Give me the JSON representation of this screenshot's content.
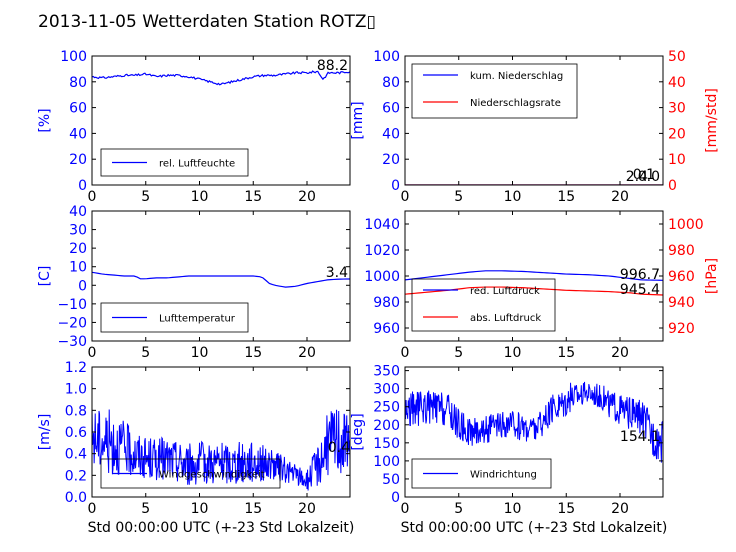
{
  "title": "2013-11-05 Wetterdaten Station ROTZ▯",
  "colors": {
    "blue": "#0000ff",
    "red": "#ff0000",
    "black": "#000000"
  },
  "chart_data": [
    {
      "type": "line",
      "id": "humidity",
      "ylabel": "[%]",
      "xlim": [
        0,
        24
      ],
      "ylim": [
        0,
        100
      ],
      "xticks": [
        "0",
        "5",
        "10",
        "15",
        "20"
      ],
      "yticks": [
        "0",
        "20",
        "40",
        "60",
        "80",
        "100"
      ],
      "legend": "lower-left",
      "annotations": [
        "88.2"
      ],
      "series": [
        {
          "name": "rel. Luftfeuchte",
          "color": "#0000ff",
          "x": [
            0,
            1,
            2,
            3,
            4,
            5,
            6,
            7,
            8,
            9,
            10,
            11,
            12,
            13,
            14,
            15,
            16,
            17,
            18,
            19,
            20,
            21,
            21.5,
            22,
            23,
            24
          ],
          "y": [
            84,
            83,
            84,
            85,
            85,
            86,
            84,
            85,
            85,
            84,
            82,
            80,
            78,
            80,
            82,
            84,
            85,
            85,
            86,
            87,
            87,
            88,
            82,
            87,
            87,
            88
          ]
        }
      ]
    },
    {
      "type": "line",
      "id": "precip",
      "ylabel": "[mm]",
      "ylabel2": "[mm/std]",
      "xlim": [
        0,
        24
      ],
      "ylim": [
        0,
        100
      ],
      "ylim2": [
        0,
        50
      ],
      "xticks": [
        "0",
        "5",
        "10",
        "15",
        "20"
      ],
      "yticks": [
        "0",
        "20",
        "40",
        "60",
        "80",
        "100"
      ],
      "yticks2": [
        "0",
        "10",
        "20",
        "30",
        "40",
        "50"
      ],
      "legend": "upper-left",
      "annotations": [
        "2.4",
        "0.0",
        "0.1"
      ],
      "series": [
        {
          "name": "kum. Niederschlag",
          "color": "#0000ff",
          "axis": "left",
          "x": [
            0,
            5,
            10,
            15,
            20,
            24
          ],
          "y": [
            0,
            0,
            0,
            0,
            0,
            0
          ]
        },
        {
          "name": "Niederschlagsrate",
          "color": "#ff0000",
          "axis": "right",
          "x": [
            0,
            5,
            10,
            15,
            20,
            24
          ],
          "y": [
            0,
            0,
            0,
            0,
            0,
            0
          ]
        }
      ]
    },
    {
      "type": "line",
      "id": "temperature",
      "ylabel": "[C]",
      "xlim": [
        0,
        24
      ],
      "ylim": [
        -30,
        40
      ],
      "xticks": [
        "0",
        "5",
        "10",
        "15",
        "20"
      ],
      "yticks": [
        "−30",
        "−20",
        "−10",
        "0",
        "10",
        "20",
        "30",
        "40"
      ],
      "legend": "lower-left",
      "annotations": [
        "3.4"
      ],
      "series": [
        {
          "name": "Lufttemperatur",
          "color": "#0000ff",
          "x": [
            0,
            1,
            2,
            3,
            4,
            4.5,
            5,
            6,
            7,
            8,
            9,
            10,
            11,
            12,
            13,
            14,
            15,
            15.8,
            16.5,
            17,
            18,
            19,
            20,
            21,
            22,
            23,
            24
          ],
          "y": [
            7,
            6,
            5.5,
            5,
            5,
            3.5,
            3.5,
            4,
            4,
            4.5,
            5,
            5,
            5,
            5,
            5,
            5,
            5,
            4.5,
            1,
            0,
            -1,
            -0.5,
            1,
            2,
            3,
            3.3,
            3.4
          ]
        }
      ]
    },
    {
      "type": "line",
      "id": "pressure",
      "ylabel2": "[hPa]",
      "xlim": [
        0,
        24
      ],
      "ylim": [
        950,
        1050
      ],
      "ylim2": [
        910,
        1010
      ],
      "xticks": [
        "0",
        "5",
        "10",
        "15",
        "20"
      ],
      "yticks": [
        "960",
        "980",
        "1000",
        "1020",
        "1040"
      ],
      "yticks2": [
        "920",
        "940",
        "960",
        "980",
        "1000"
      ],
      "legend": "lower-left",
      "annotations": [
        "996.7",
        "945.4"
      ],
      "series": [
        {
          "name": "red. Luftdruck",
          "color": "#0000ff",
          "axis": "left",
          "x": [
            0,
            2,
            4,
            6,
            7.5,
            9,
            11,
            13,
            15,
            17,
            19,
            21,
            22,
            24
          ],
          "y": [
            997,
            999,
            1001,
            1003,
            1004,
            1004,
            1003.5,
            1002.5,
            1001.5,
            1001,
            1000,
            998,
            997,
            996.7
          ]
        },
        {
          "name": "abs. Luftdruck",
          "color": "#ff0000",
          "axis": "right",
          "x": [
            0,
            2,
            4,
            6,
            7.5,
            9,
            11,
            13,
            15,
            17,
            19,
            21,
            22,
            24
          ],
          "y": [
            946,
            947.5,
            949,
            951,
            951.5,
            951.5,
            951,
            950,
            949,
            948.5,
            948,
            947,
            946,
            945.4
          ]
        }
      ]
    },
    {
      "type": "line",
      "id": "wind-speed",
      "ylabel": "[m/s]",
      "xlim": [
        0,
        24
      ],
      "ylim": [
        0,
        1.2
      ],
      "xticks": [
        "0",
        "5",
        "10",
        "15",
        "20"
      ],
      "yticks": [
        "0.0",
        "0.2",
        "0.4",
        "0.6",
        "0.8",
        "1.0",
        "1.2"
      ],
      "xlabel": "Std 00:00:00 UTC (+-23 Std Lokalzeit)",
      "legend": "lower-left",
      "annotations": [
        "0.4"
      ],
      "series": [
        {
          "name": "Windgeschwindigkeit",
          "color": "#0000ff",
          "x": [
            0,
            2,
            3,
            5,
            7,
            9,
            11,
            13,
            15,
            16.5,
            18,
            19,
            20,
            21,
            22,
            23,
            24
          ],
          "y": [
            0.55,
            0.5,
            0.45,
            0.35,
            0.35,
            0.3,
            0.32,
            0.3,
            0.33,
            0.3,
            0.25,
            0.2,
            0.15,
            0.3,
            0.5,
            0.55,
            0.45
          ],
          "spread": [
            0.3,
            0.3,
            0.25,
            0.2,
            0.2,
            0.2,
            0.2,
            0.2,
            0.2,
            0.15,
            0.12,
            0.1,
            0.1,
            0.2,
            0.3,
            0.35,
            0.25
          ]
        }
      ]
    },
    {
      "type": "line",
      "id": "wind-direction",
      "ylabel": "[deg]",
      "xlim": [
        0,
        24
      ],
      "ylim": [
        0,
        360
      ],
      "xticks": [
        "0",
        "5",
        "10",
        "15",
        "20"
      ],
      "yticks": [
        "0",
        "50",
        "100",
        "150",
        "200",
        "250",
        "300",
        "350"
      ],
      "xlabel": "Std 00:00:00 UTC (+-23 Std Lokalzeit)",
      "legend": "lower-left",
      "annotations": [
        "154.1"
      ],
      "series": [
        {
          "name": "Windrichtung",
          "color": "#0000ff",
          "x": [
            0,
            2,
            4,
            5,
            6,
            8,
            10,
            12,
            13,
            14,
            15,
            16,
            17,
            18,
            19,
            20,
            21,
            22,
            23,
            24
          ],
          "y": [
            240,
            250,
            240,
            200,
            180,
            190,
            200,
            190,
            210,
            250,
            270,
            285,
            290,
            285,
            260,
            240,
            230,
            220,
            170,
            150
          ],
          "spread": [
            50,
            50,
            50,
            45,
            40,
            40,
            40,
            40,
            40,
            45,
            45,
            35,
            30,
            35,
            40,
            45,
            45,
            50,
            60,
            60
          ]
        }
      ]
    }
  ]
}
